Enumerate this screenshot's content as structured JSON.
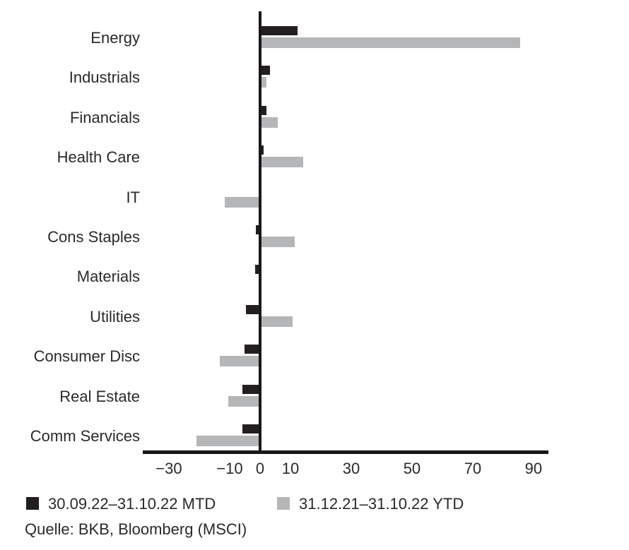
{
  "figure": {
    "legend": [
      {
        "id": "mtd",
        "label": "30.09.22–31.10.22 MTD",
        "color": "#231f20",
        "swatch_icon": "black-square-swatch"
      },
      {
        "id": "ytd",
        "label": "31.12.21–31.10.22 YTD",
        "color": "#b4b6b8",
        "swatch_icon": "gray-square-swatch"
      }
    ],
    "source": "Quelle: BKB, Bloomberg (MSCI)",
    "colors": {
      "axis": "#1a171b",
      "text": "#2a2a2a",
      "background": "#ffffff"
    }
  },
  "chart_data": {
    "type": "bar",
    "orientation": "horizontal",
    "title": "",
    "xlabel": "",
    "ylabel": "",
    "categories": [
      "Energy",
      "Industrials",
      "Financials",
      "Health Care",
      "IT",
      "Cons Staples",
      "Materials",
      "Utilities",
      "Consumer Disc",
      "Real Estate",
      "Comm Services"
    ],
    "series": [
      {
        "name": "30.09.22–31.10.22 MTD",
        "color": "#231f20",
        "values": [
          12.3,
          3.3,
          2.2,
          1.2,
          0,
          -1.4,
          -1.6,
          -4.7,
          -5.1,
          -5.8,
          -5.8
        ]
      },
      {
        "name": "31.12.21–31.10.22 YTD",
        "color": "#b4b6b8",
        "values": [
          85.5,
          2.2,
          5.8,
          14.3,
          -11.6,
          11.4,
          0,
          10.7,
          -13.3,
          -10.5,
          -20.9
        ]
      }
    ],
    "xtick_values": [
      -30,
      -10,
      0,
      10,
      30,
      50,
      70,
      90
    ],
    "xtick_labels": [
      "−30",
      "−10",
      "0",
      "10",
      "30",
      "50",
      "70",
      "90"
    ],
    "xlim": [
      -38.6,
      94.9
    ],
    "grid": false,
    "legend_position": "bottom",
    "unit": "percent"
  }
}
